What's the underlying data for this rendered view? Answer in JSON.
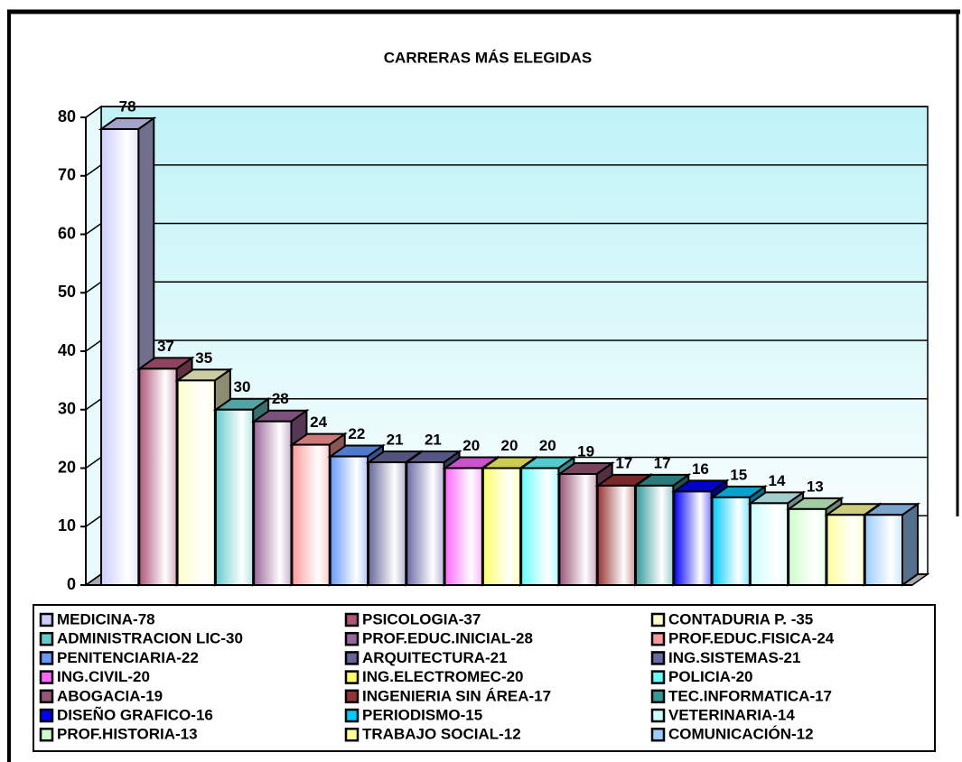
{
  "chart_data": {
    "type": "bar3d",
    "title": "CARRERAS MÁS ELEGIDAS",
    "categories": [
      "MEDICINA-78",
      "PSICOLOGIA-37",
      "CONTADURIA P. -35",
      "ADMINISTRACION LIC-30",
      "PROF.EDUC.INICIAL-28",
      "PROF.EDUC.FISICA-24",
      "PENITENCIARIA-22",
      "ARQUITECTURA-21",
      "ING.SISTEMAS-21",
      "ING.CIVIL-20",
      "ING.ELECTROMEC-20",
      "POLICIA-20",
      "ABOGACIA-19",
      "INGENIERIA SIN ÁREA-17",
      "TEC.INFORMATICA-17",
      "DISEÑO GRAFICO-16",
      "PERIODISMO-15",
      "VETERINARIA-14",
      "PROF.HISTORIA-13",
      "TRABAJO SOCIAL-12",
      "COMUNICACIÓN-12"
    ],
    "values": [
      78,
      37,
      35,
      30,
      28,
      24,
      22,
      21,
      21,
      20,
      20,
      20,
      19,
      17,
      17,
      16,
      15,
      14,
      13,
      12,
      12
    ],
    "value_labels": [
      "78",
      "37",
      "35",
      "30",
      "28",
      "24",
      "22",
      "21",
      "21",
      "20",
      "20",
      "20",
      "19",
      "17",
      "17",
      "16",
      "15",
      "14",
      "13",
      null,
      null
    ],
    "colors": [
      "#ccccff",
      "#b05577",
      "#ffffcc",
      "#66cccc",
      "#996699",
      "#ff9999",
      "#6699ff",
      "#666699",
      "#6a6aa8",
      "#ff66ff",
      "#ffff66",
      "#66ffff",
      "#995577",
      "#993333",
      "#339999",
      "#0000ff",
      "#00ccff",
      "#ccffff",
      "#ccffcc",
      "#ffff99",
      "#99ccff"
    ],
    "ylim": [
      0,
      80
    ],
    "yticks": [
      0,
      10,
      20,
      30,
      40,
      50,
      60,
      70,
      80
    ],
    "grid": true,
    "legend": "bottom"
  }
}
